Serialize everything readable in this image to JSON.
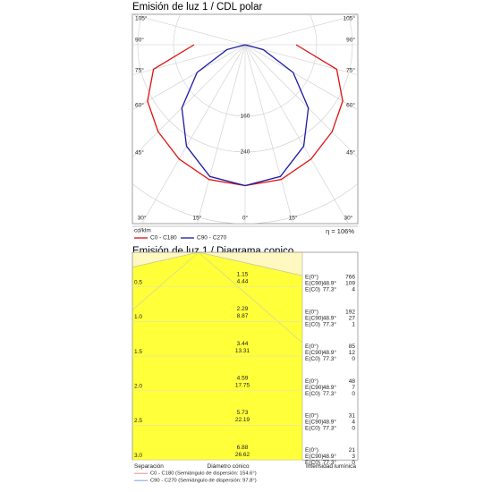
{
  "chart_data": [
    {
      "type": "polar",
      "title": "Emisión de luz 1 / CDL polar",
      "unit_label": "cd/klm",
      "angles": [
        0,
        15,
        30,
        45,
        60,
        75,
        90
      ],
      "series": [
        {
          "name": "C0 - C180",
          "color": "#e01010",
          "values": [
            315,
            312,
            295,
            275,
            252,
            212,
            114
          ]
        },
        {
          "name": "C90 - C270",
          "color": "#1a1aa8",
          "values": [
            315,
            305,
            262,
            200,
            124,
            42,
            0
          ]
        }
      ],
      "rlim": [
        0,
        400
      ],
      "rticks": [
        160,
        240
      ],
      "angle_ticks": [
        {
          "value": 0,
          "label": "0°"
        },
        {
          "value": 15,
          "label": "15°"
        },
        {
          "value": 30,
          "label": "30°"
        },
        {
          "value": 45,
          "label": "45°"
        },
        {
          "value": 60,
          "label": "60°"
        },
        {
          "value": 75,
          "label": "75°"
        },
        {
          "value": 90,
          "label": "90°"
        },
        {
          "value": 105,
          "label": "105°"
        }
      ],
      "efficiency": "η = 106%"
    },
    {
      "type": "conic",
      "title": "Emisión de luz 1 / Diagrama conico",
      "angles": [
        {
          "value": 48.9,
          "label": "48.9°"
        },
        {
          "value": 77.3,
          "label": "77.3°"
        }
      ],
      "e_labels": [
        "E(0°)",
        "E(C90)",
        "E(C0)"
      ],
      "rows": [
        {
          "height": 0.5,
          "diameters": [
            1.15,
            4.44
          ],
          "e": [
            766,
            109,
            4
          ]
        },
        {
          "height": {
            "value": 1,
            "label": "1.0"
          },
          "diameters": [
            2.29,
            8.87
          ],
          "e": [
            192,
            27,
            1
          ]
        },
        {
          "height": 1.5,
          "diameters": [
            3.44,
            13.31
          ],
          "e": [
            85,
            12,
            0
          ]
        },
        {
          "height": {
            "value": 2,
            "label": "2.0"
          },
          "diameters": [
            4.59,
            17.75
          ],
          "e": [
            48,
            7,
            0
          ]
        },
        {
          "height": 2.5,
          "diameters": [
            5.73,
            22.19
          ],
          "e": [
            31,
            4,
            0
          ]
        },
        {
          "height": {
            "value": 3,
            "label": "3.0"
          },
          "diameters": [
            6.88,
            26.62
          ],
          "e": [
            21,
            3,
            0
          ]
        }
      ],
      "separation_label": "Separación",
      "diameter_label": "Diámetro cónico",
      "intensity_label": "Intensidad lumínica",
      "legend": [
        {
          "name": "C0 - C180 (Semiángulo de dispersión: 154.6°)",
          "color": "#f08a8a"
        },
        {
          "name": "C90 - C270 (Semiángulo de dispersión: 97.8°)",
          "color": "#7fa3d6"
        }
      ]
    }
  ]
}
